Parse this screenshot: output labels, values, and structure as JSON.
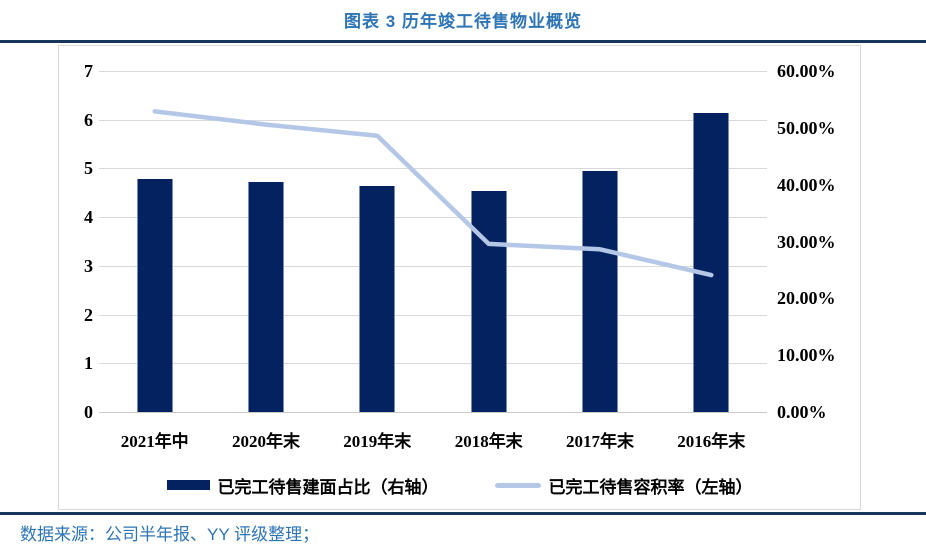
{
  "header": {
    "title": "图表 3 历年竣工待售物业概览"
  },
  "footer": {
    "source": "数据来源：公司半年报、YY 评级整理；"
  },
  "colors": {
    "accent_blue": "#2E75B6",
    "rule_navy": "#17365D",
    "bar_navy": "#04225F",
    "line_blue": "#B4C7E7",
    "grid_gray": "#D9D9D9",
    "text_black": "#000000"
  },
  "chart_data": {
    "type": "bar+line combo",
    "title": "图表 3 历年竣工待售物业概览",
    "categories": [
      "2021年中",
      "2020年末",
      "2019年末",
      "2018年末",
      "2017年末",
      "2016年末"
    ],
    "series": [
      {
        "name": "已完工待售建面占比（右轴）",
        "type": "bar",
        "axis": "right",
        "unit": "%",
        "values": [
          41.0,
          40.5,
          39.7,
          38.9,
          42.5,
          52.6
        ]
      },
      {
        "name": "已完工待售容积率（左轴）",
        "type": "line",
        "axis": "left",
        "values": [
          6.17,
          5.9,
          5.67,
          3.45,
          3.34,
          2.81
        ]
      }
    ],
    "left_axis": {
      "min": 0,
      "max": 7,
      "ticks": [
        7,
        6,
        5,
        4,
        3,
        2,
        1,
        0
      ]
    },
    "right_axis": {
      "min": 0,
      "max": 60,
      "tick_labels": [
        "60.00%",
        "50.00%",
        "40.00%",
        "30.00%",
        "20.00%",
        "10.00%",
        "0.00%"
      ]
    },
    "grid": "horizontal",
    "legend_position": "bottom"
  }
}
